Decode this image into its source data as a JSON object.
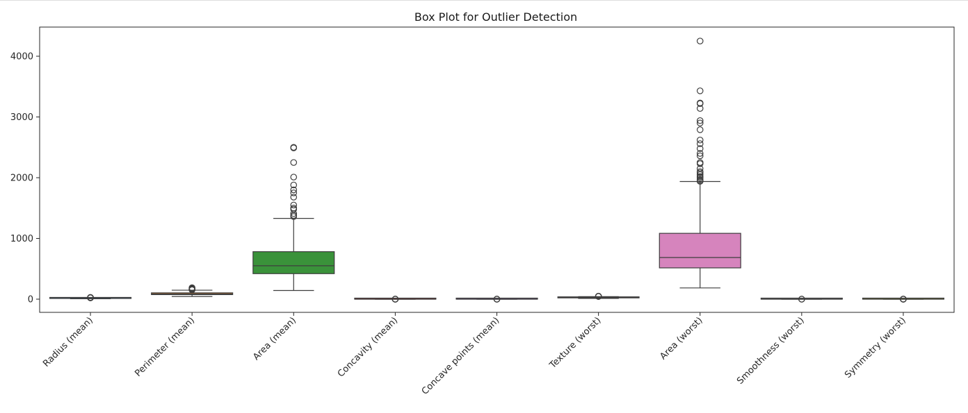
{
  "chart_data": {
    "type": "box",
    "title": "Box Plot for Outlier Detection",
    "xlabel": "",
    "ylabel": "",
    "ylim": [
      -210,
      4430
    ],
    "yticks": [
      0,
      1000,
      2000,
      3000,
      4000
    ],
    "grid": false,
    "categories": [
      "Radius (mean)",
      "Perimeter (mean)",
      "Area (mean)",
      "Concavity (mean)",
      "Concave points (mean)",
      "Texture (worst)",
      "Area (worst)",
      "Smoothness (worst)",
      "Symmetry (worst)"
    ],
    "boxes": [
      {
        "name": "Radius (mean)",
        "color": "#3274a1",
        "whisker_low": 7,
        "q1": 11.7,
        "median": 13.4,
        "q3": 15.8,
        "whisker_high": 21.9,
        "outliers": [
          22.3,
          23.3,
          24.3,
          25.2,
          27.4,
          28.1
        ]
      },
      {
        "name": "Perimeter (mean)",
        "color": "#e1812c",
        "whisker_low": 44,
        "q1": 75,
        "median": 86,
        "q3": 104,
        "whisker_high": 148,
        "outliers": [
          153,
          158,
          166,
          172,
          182,
          188
        ]
      },
      {
        "name": "Area (mean)",
        "color": "#3a923a",
        "whisker_low": 143,
        "q1": 420,
        "median": 550,
        "q3": 782,
        "whisker_high": 1330,
        "outliers": [
          1360,
          1380,
          1410,
          1480,
          1500,
          1550,
          1680,
          1750,
          1800,
          1880,
          2010,
          2250,
          2490,
          2500
        ]
      },
      {
        "name": "Concavity (mean)",
        "color": "#c03d3e",
        "whisker_low": 0,
        "q1": 0.03,
        "median": 0.06,
        "q3": 0.13,
        "whisker_high": 0.28,
        "outliers": [
          0.3,
          0.35,
          0.4,
          0.43
        ]
      },
      {
        "name": "Concave points (mean)",
        "color": "#9372b2",
        "whisker_low": 0,
        "q1": 0.02,
        "median": 0.03,
        "q3": 0.07,
        "whisker_high": 0.15,
        "outliers": [
          0.16,
          0.18,
          0.2
        ]
      },
      {
        "name": "Texture (worst)",
        "color": "#845b53",
        "whisker_low": 12,
        "q1": 21,
        "median": 25.4,
        "q3": 29.7,
        "whisker_high": 42,
        "outliers": [
          44,
          45.4,
          47,
          49.5
        ]
      },
      {
        "name": "Area (worst)",
        "color": "#d684bd",
        "whisker_low": 185,
        "q1": 515,
        "median": 686,
        "q3": 1084,
        "whisker_high": 1937,
        "outliers": [
          1940,
          1950,
          1970,
          2000,
          2020,
          2050,
          2080,
          2100,
          2150,
          2230,
          2250,
          2360,
          2400,
          2480,
          2560,
          2620,
          2790,
          2900,
          2940,
          3140,
          3220,
          3230,
          3430,
          4250
        ]
      },
      {
        "name": "Smoothness (worst)",
        "color": "#7f7f7f",
        "whisker_low": 0.07,
        "q1": 0.12,
        "median": 0.13,
        "q3": 0.15,
        "whisker_high": 0.19,
        "outliers": [
          0.2,
          0.22
        ]
      },
      {
        "name": "Symmetry (worst)",
        "color": "#a9aa35",
        "whisker_low": 0.16,
        "q1": 0.25,
        "median": 0.28,
        "q3": 0.32,
        "whisker_high": 0.42,
        "outliers": [
          0.45,
          0.5,
          0.55,
          0.66
        ]
      }
    ]
  }
}
